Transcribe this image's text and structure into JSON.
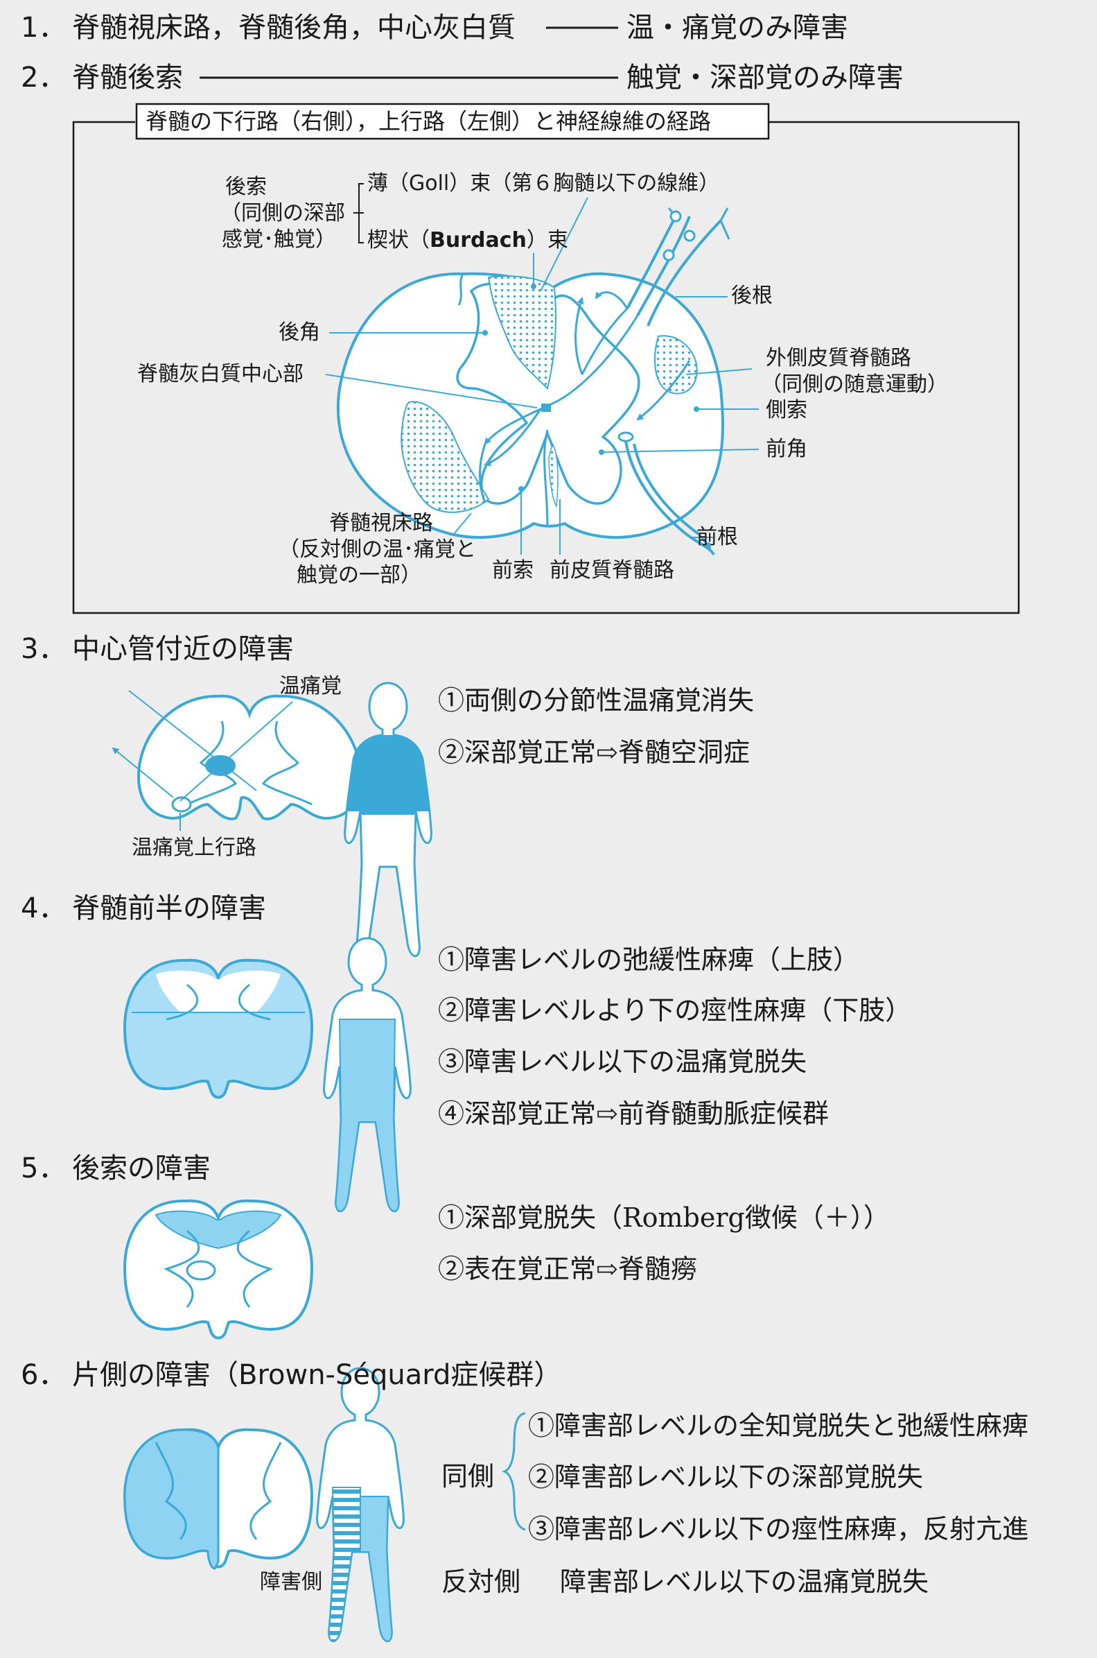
{
  "s1": {
    "num": "1．",
    "title": "脊髄視床路，脊髄後角，中心灰白質",
    "result": "温・痛覚のみ障害"
  },
  "s2": {
    "num": "2．",
    "title": "脊髄後索",
    "result": "触覚・深部覚のみ障害"
  },
  "diagram": {
    "title": "脊髄の下行路（右側），上行路（左側）と神経線維の経路",
    "labels": {
      "posterior_column_1": "後索",
      "posterior_column_2": "（同側の深部",
      "posterior_column_3": "感覚･触覚）",
      "goll": "薄（Goll）束（第６胸髄以下の線維）",
      "burdach_pre": "楔状（",
      "burdach_name": "Burdach",
      "burdach_post": "）束",
      "dorsal_root": "後根",
      "posterior_horn": "後角",
      "central_gray": "脊髄灰白質中心部",
      "lateral_cst_1": "外側皮質脊髄路",
      "lateral_cst_2": "（同側の随意運動）",
      "lateral_column": "側索",
      "anterior_horn": "前角",
      "ventral_root": "前根",
      "spinothalamic_1": "脊髄視床路",
      "spinothalamic_2": "（反対側の温･痛覚と",
      "spinothalamic_3": "触覚の一部）",
      "anterior_column": "前索",
      "anterior_cst": "前皮質脊髄路"
    }
  },
  "s3": {
    "num": "3．",
    "title": "中心管付近の障害",
    "label_top": "温痛覚",
    "label_bottom": "温痛覚上行路",
    "items": [
      "①両側の分節性温痛覚消失",
      "②深部覚正常⇨脊髄空洞症"
    ]
  },
  "s4": {
    "num": "4．",
    "title": "脊髄前半の障害",
    "items": [
      "①障害レベルの弛緩性麻痺（上肢）",
      "②障害レベルより下の痙性麻痺（下肢）",
      "③障害レベル以下の温痛覚脱失",
      "④深部覚正常⇨前脊髄動脈症候群"
    ]
  },
  "s5": {
    "num": "5．",
    "title": "後索の障害",
    "items": [
      "①深部覚脱失（Romberg徴候（＋））",
      "②表在覚正常⇨脊髄癆"
    ]
  },
  "s6": {
    "num": "6．",
    "title": "片側の障害（Brown-Séquard症候群）",
    "side_label": "障害側",
    "ipsi": "同側",
    "items": [
      "①障害部レベルの全知覚脱失と弛緩性麻痺",
      "②障害部レベル以下の深部覚脱失",
      "③障害部レベル以下の痙性麻痺，反射亢進"
    ],
    "contra": "反対側",
    "contra_item": "障害部レベル以下の温痛覚脱失"
  },
  "colors": {
    "blue": "#3aa9d6",
    "light_blue": "#8fd3f3",
    "fill_blue": "#a9def6"
  }
}
